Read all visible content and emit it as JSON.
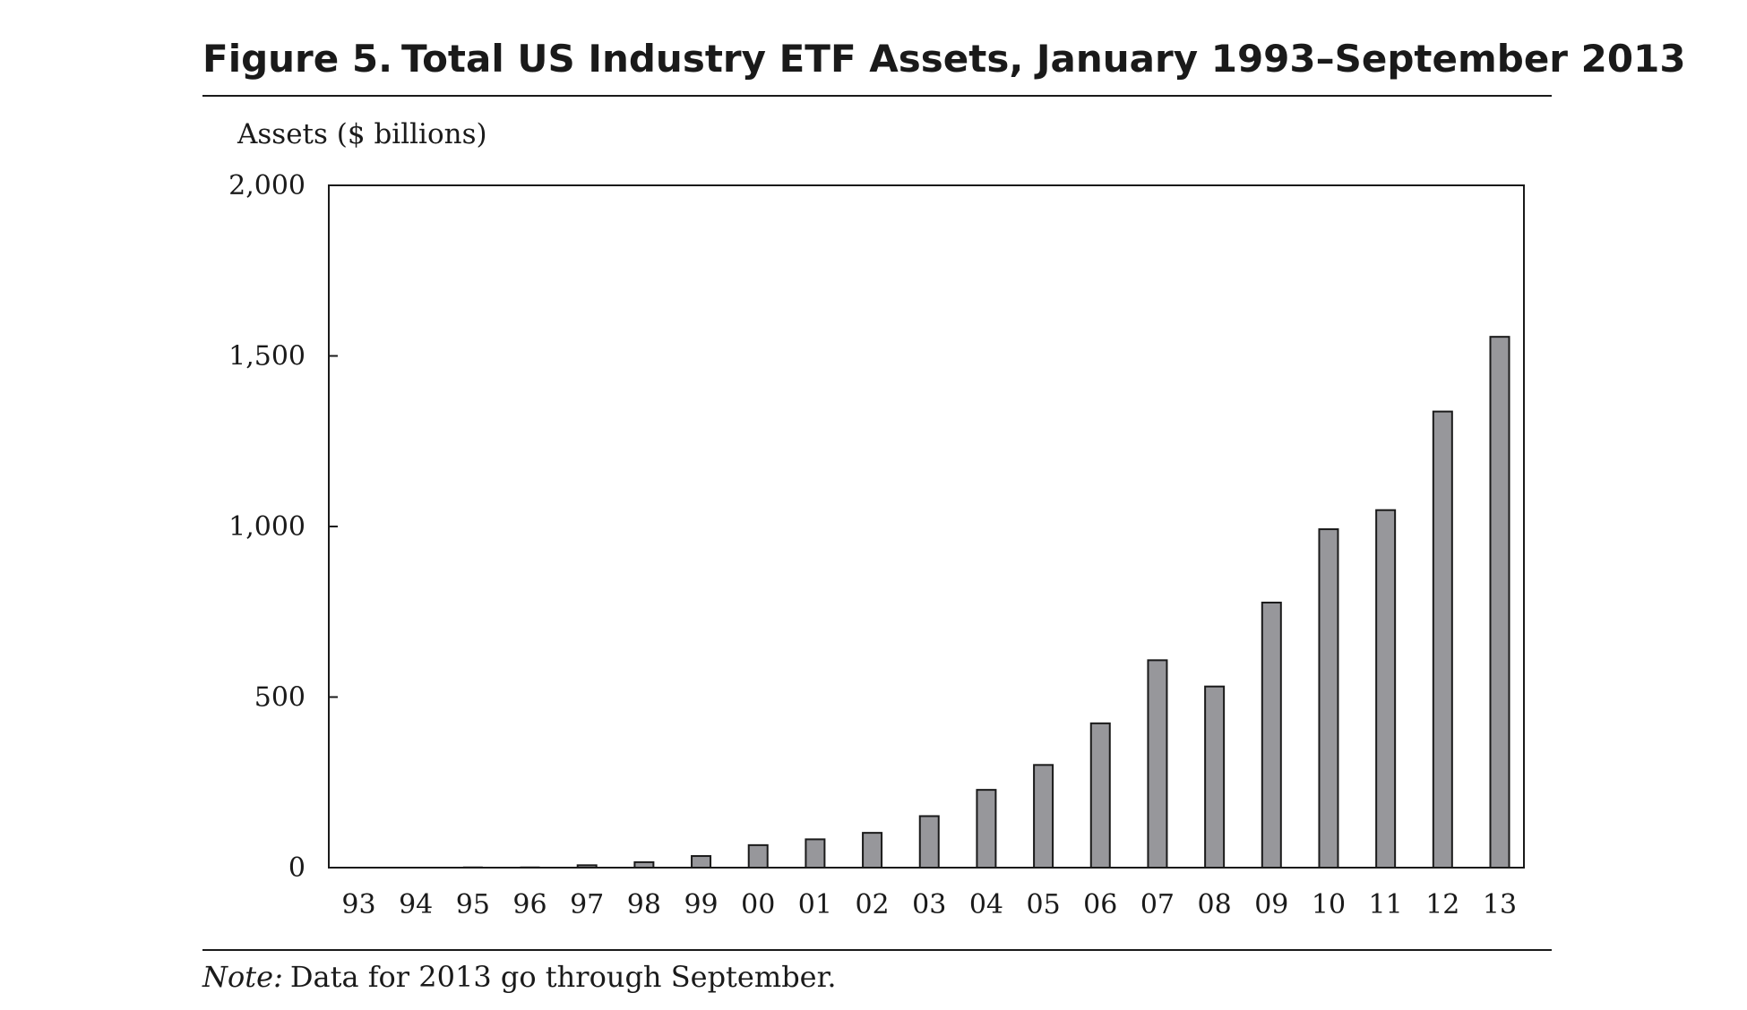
{
  "figure": {
    "number": "Figure 5.",
    "title": "Total US Industry ETF Assets, January 1993–September 2013"
  },
  "note": {
    "label": "Note:",
    "text": "Data for 2013 go through September."
  },
  "colors": {
    "bar_fill": "#97979b",
    "bar_stroke": "#1a1a1a",
    "axis": "#1a1a1a",
    "text": "#1a1a1a"
  },
  "chart_data": {
    "type": "bar",
    "title": "Total US Industry ETF Assets, January 1993–September 2013",
    "xlabel": "",
    "ylabel": "Assets ($ billions)",
    "ylim": [
      0,
      2000
    ],
    "yticks": [
      0,
      500,
      1000,
      1500,
      2000
    ],
    "ytick_labels": [
      "0",
      "500",
      "1,000",
      "1,500",
      "2,000"
    ],
    "grid": false,
    "legend": "none",
    "categories": [
      "93",
      "94",
      "95",
      "96",
      "97",
      "98",
      "99",
      "00",
      "01",
      "02",
      "03",
      "04",
      "05",
      "06",
      "07",
      "08",
      "09",
      "10",
      "11",
      "12",
      "13"
    ],
    "series": [
      {
        "name": "Total US Industry ETF Assets",
        "values": [
          0.5,
          1,
          2,
          2,
          7,
          16,
          34,
          66,
          83,
          102,
          151,
          228,
          301,
          423,
          608,
          531,
          777,
          992,
          1048,
          1337,
          1556
        ]
      }
    ]
  }
}
